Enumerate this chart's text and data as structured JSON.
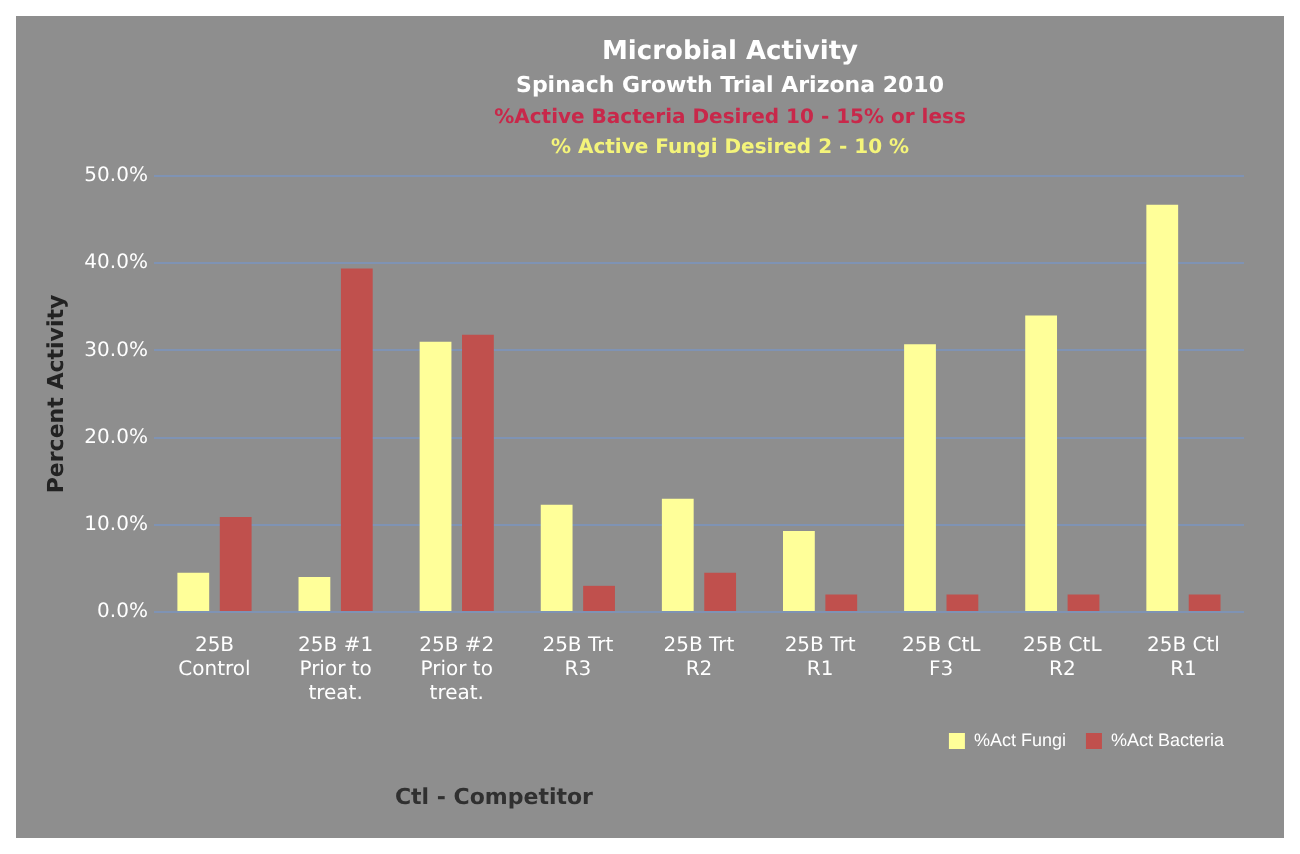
{
  "chart_data": {
    "type": "bar",
    "title": "Microbial Activity",
    "subtitle": "Spinach Growth Trial Arizona 2010",
    "annotations": [
      "%Active Bacteria Desired 10 - 15% or less",
      "% Active Fungi Desired 2 - 10 %",
      "Ctl - Competitor"
    ],
    "ylabel": "Percent Activity",
    "categories": [
      "25B Control",
      "25B #1 Prior to treat.",
      "25B #2 Prior to treat.",
      "25B Trt R3",
      "25B Trt R2",
      "25B Trt R1",
      "25B CtL F3",
      "25B CtL R2",
      "25B Ctl R1"
    ],
    "series": [
      {
        "name": "%Act Fungi",
        "color": "#ffff99",
        "values": [
          4.5,
          4,
          31,
          12.3,
          13,
          9.3,
          30.7,
          34,
          46.7
        ]
      },
      {
        "name": "%Act Bacteria",
        "color": "#c0504d",
        "values": [
          10.9,
          39.4,
          31.8,
          3,
          4.5,
          2,
          2,
          2,
          2
        ]
      }
    ],
    "ylim": [
      0,
      50
    ],
    "yticks": [
      {
        "value": 0,
        "label": "0.0%"
      },
      {
        "value": 10,
        "label": "10.0%"
      },
      {
        "value": 20,
        "label": "20.0%"
      },
      {
        "value": 30,
        "label": "30.0%"
      },
      {
        "value": 40,
        "label": "40.0%"
      },
      {
        "value": 50,
        "label": "50.0%"
      }
    ],
    "grid": "y",
    "legend": "bottom right"
  }
}
